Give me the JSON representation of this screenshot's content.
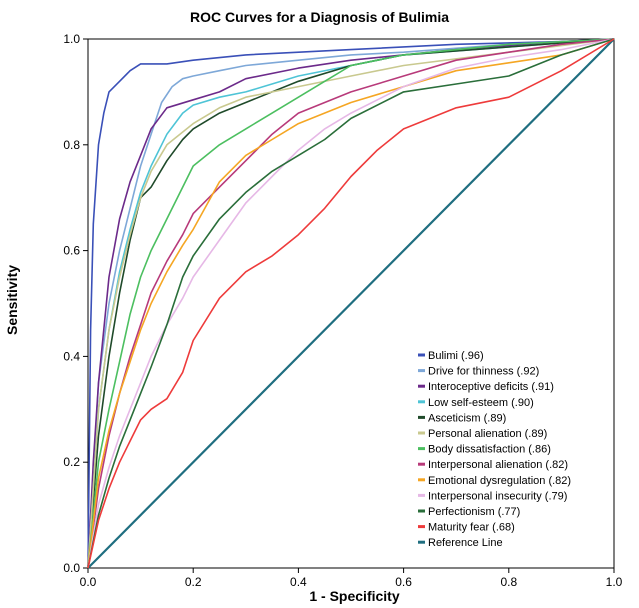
{
  "chart_data": {
    "type": "line",
    "title": "ROC Curves for a Diagnosis of Bulimia",
    "xlabel": "1 - Specificity",
    "ylabel": "Sensitivity",
    "xlim": [
      0.0,
      1.0
    ],
    "ylim": [
      0.0,
      1.0
    ],
    "xticks": [
      "0.0",
      "0.2",
      "0.4",
      "0.6",
      "0.8",
      "1.0"
    ],
    "yticks": [
      "0.0",
      "0.2",
      "0.4",
      "0.6",
      "0.8",
      "1.0"
    ],
    "grid": false,
    "legend_position": "bottom-right",
    "series": [
      {
        "name": "Bulimi (.96)",
        "color": "#3a50b8",
        "x": [
          0,
          0.005,
          0.01,
          0.02,
          0.03,
          0.04,
          0.06,
          0.08,
          0.1,
          0.15,
          0.2,
          0.3,
          0.5,
          0.7,
          0.9,
          1.0
        ],
        "y": [
          0,
          0.45,
          0.65,
          0.8,
          0.86,
          0.9,
          0.92,
          0.94,
          0.953,
          0.953,
          0.96,
          0.97,
          0.98,
          0.99,
          0.995,
          1.0
        ]
      },
      {
        "name": "Drive for thinness (.92)",
        "color": "#7ea8d8",
        "x": [
          0,
          0.02,
          0.04,
          0.06,
          0.08,
          0.1,
          0.12,
          0.14,
          0.16,
          0.18,
          0.2,
          0.25,
          0.3,
          0.4,
          0.5,
          0.6,
          0.8,
          1.0
        ],
        "y": [
          0,
          0.35,
          0.5,
          0.6,
          0.68,
          0.76,
          0.82,
          0.88,
          0.91,
          0.925,
          0.93,
          0.94,
          0.95,
          0.96,
          0.97,
          0.975,
          0.99,
          1.0
        ]
      },
      {
        "name": "Interoceptive deficits (.91)",
        "color": "#6c2a8a",
        "x": [
          0,
          0.01,
          0.02,
          0.04,
          0.06,
          0.08,
          0.1,
          0.12,
          0.15,
          0.2,
          0.25,
          0.3,
          0.4,
          0.5,
          0.7,
          0.9,
          1.0
        ],
        "y": [
          0,
          0.2,
          0.35,
          0.55,
          0.66,
          0.73,
          0.78,
          0.83,
          0.87,
          0.885,
          0.9,
          0.925,
          0.945,
          0.96,
          0.98,
          0.995,
          1.0
        ]
      },
      {
        "name": "Low self-esteem (.90)",
        "color": "#4ec4d6",
        "x": [
          0,
          0.02,
          0.04,
          0.06,
          0.08,
          0.1,
          0.12,
          0.15,
          0.18,
          0.2,
          0.25,
          0.3,
          0.4,
          0.5,
          0.6,
          0.8,
          1.0
        ],
        "y": [
          0,
          0.3,
          0.45,
          0.56,
          0.64,
          0.71,
          0.76,
          0.82,
          0.86,
          0.875,
          0.89,
          0.9,
          0.93,
          0.95,
          0.97,
          0.985,
          1.0
        ]
      },
      {
        "name": "Asceticism (.89)",
        "color": "#1f4a2a",
        "x": [
          0,
          0.02,
          0.04,
          0.06,
          0.08,
          0.1,
          0.12,
          0.15,
          0.18,
          0.2,
          0.25,
          0.3,
          0.4,
          0.5,
          0.6,
          0.8,
          1.0
        ],
        "y": [
          0,
          0.25,
          0.4,
          0.52,
          0.62,
          0.7,
          0.72,
          0.77,
          0.81,
          0.83,
          0.86,
          0.88,
          0.92,
          0.95,
          0.97,
          0.985,
          1.0
        ]
      },
      {
        "name": "Personal alienation (.89)",
        "color": "#c9c98f",
        "x": [
          0,
          0.02,
          0.04,
          0.06,
          0.08,
          0.1,
          0.12,
          0.15,
          0.2,
          0.25,
          0.3,
          0.4,
          0.5,
          0.6,
          0.8,
          1.0
        ],
        "y": [
          0,
          0.3,
          0.45,
          0.55,
          0.63,
          0.7,
          0.75,
          0.8,
          0.84,
          0.87,
          0.89,
          0.91,
          0.93,
          0.95,
          0.975,
          1.0
        ]
      },
      {
        "name": "Body dissatisfaction (.86)",
        "color": "#4cbf60",
        "x": [
          0,
          0.02,
          0.04,
          0.06,
          0.08,
          0.1,
          0.12,
          0.15,
          0.18,
          0.2,
          0.25,
          0.3,
          0.35,
          0.4,
          0.45,
          0.5,
          0.6,
          0.8,
          1.0
        ],
        "y": [
          0,
          0.2,
          0.3,
          0.39,
          0.48,
          0.55,
          0.6,
          0.66,
          0.72,
          0.76,
          0.8,
          0.83,
          0.86,
          0.89,
          0.92,
          0.95,
          0.97,
          0.99,
          1.0
        ]
      },
      {
        "name": "Interpersonal alienation (.82)",
        "color": "#b83a7a",
        "x": [
          0,
          0.02,
          0.04,
          0.06,
          0.08,
          0.1,
          0.12,
          0.15,
          0.18,
          0.2,
          0.25,
          0.3,
          0.35,
          0.4,
          0.5,
          0.6,
          0.7,
          0.8,
          0.9,
          1.0
        ],
        "y": [
          0,
          0.15,
          0.25,
          0.33,
          0.4,
          0.46,
          0.52,
          0.58,
          0.63,
          0.67,
          0.72,
          0.77,
          0.82,
          0.86,
          0.9,
          0.93,
          0.96,
          0.975,
          0.99,
          1.0
        ]
      },
      {
        "name": "Emotional dysregulation (.82)",
        "color": "#f5a623",
        "x": [
          0,
          0.02,
          0.04,
          0.06,
          0.08,
          0.1,
          0.12,
          0.15,
          0.18,
          0.2,
          0.25,
          0.3,
          0.35,
          0.4,
          0.5,
          0.6,
          0.7,
          0.8,
          0.9,
          1.0
        ],
        "y": [
          0,
          0.17,
          0.26,
          0.33,
          0.39,
          0.45,
          0.5,
          0.56,
          0.61,
          0.64,
          0.73,
          0.78,
          0.81,
          0.84,
          0.88,
          0.91,
          0.94,
          0.955,
          0.97,
          1.0
        ]
      },
      {
        "name": "Interpersonal insecurity (.79)",
        "color": "#e6b8e6",
        "x": [
          0,
          0.02,
          0.04,
          0.06,
          0.08,
          0.1,
          0.12,
          0.15,
          0.18,
          0.2,
          0.25,
          0.3,
          0.35,
          0.4,
          0.45,
          0.5,
          0.6,
          0.7,
          0.8,
          0.9,
          1.0
        ],
        "y": [
          0,
          0.12,
          0.19,
          0.25,
          0.3,
          0.35,
          0.4,
          0.46,
          0.51,
          0.55,
          0.62,
          0.69,
          0.74,
          0.79,
          0.83,
          0.86,
          0.91,
          0.945,
          0.965,
          0.98,
          1.0
        ]
      },
      {
        "name": "Perfectionism (.77)",
        "color": "#2a6e3a",
        "x": [
          0,
          0.02,
          0.04,
          0.06,
          0.08,
          0.1,
          0.12,
          0.15,
          0.18,
          0.2,
          0.25,
          0.3,
          0.35,
          0.4,
          0.45,
          0.5,
          0.6,
          0.7,
          0.8,
          0.9,
          1.0
        ],
        "y": [
          0,
          0.1,
          0.17,
          0.23,
          0.28,
          0.33,
          0.38,
          0.46,
          0.55,
          0.59,
          0.66,
          0.71,
          0.75,
          0.78,
          0.81,
          0.85,
          0.9,
          0.915,
          0.93,
          0.97,
          1.0
        ]
      },
      {
        "name": "Maturity fear (.68)",
        "color": "#ee3b3b",
        "x": [
          0,
          0.02,
          0.04,
          0.06,
          0.08,
          0.1,
          0.12,
          0.15,
          0.18,
          0.2,
          0.25,
          0.3,
          0.35,
          0.4,
          0.45,
          0.5,
          0.55,
          0.6,
          0.7,
          0.8,
          0.9,
          1.0
        ],
        "y": [
          0,
          0.09,
          0.15,
          0.2,
          0.24,
          0.28,
          0.3,
          0.32,
          0.37,
          0.43,
          0.51,
          0.56,
          0.59,
          0.63,
          0.68,
          0.74,
          0.79,
          0.83,
          0.87,
          0.89,
          0.94,
          1.0
        ]
      },
      {
        "name": "Reference Line",
        "color": "#1f6e80",
        "x": [
          0,
          1.0
        ],
        "y": [
          0,
          1.0
        ]
      }
    ]
  }
}
